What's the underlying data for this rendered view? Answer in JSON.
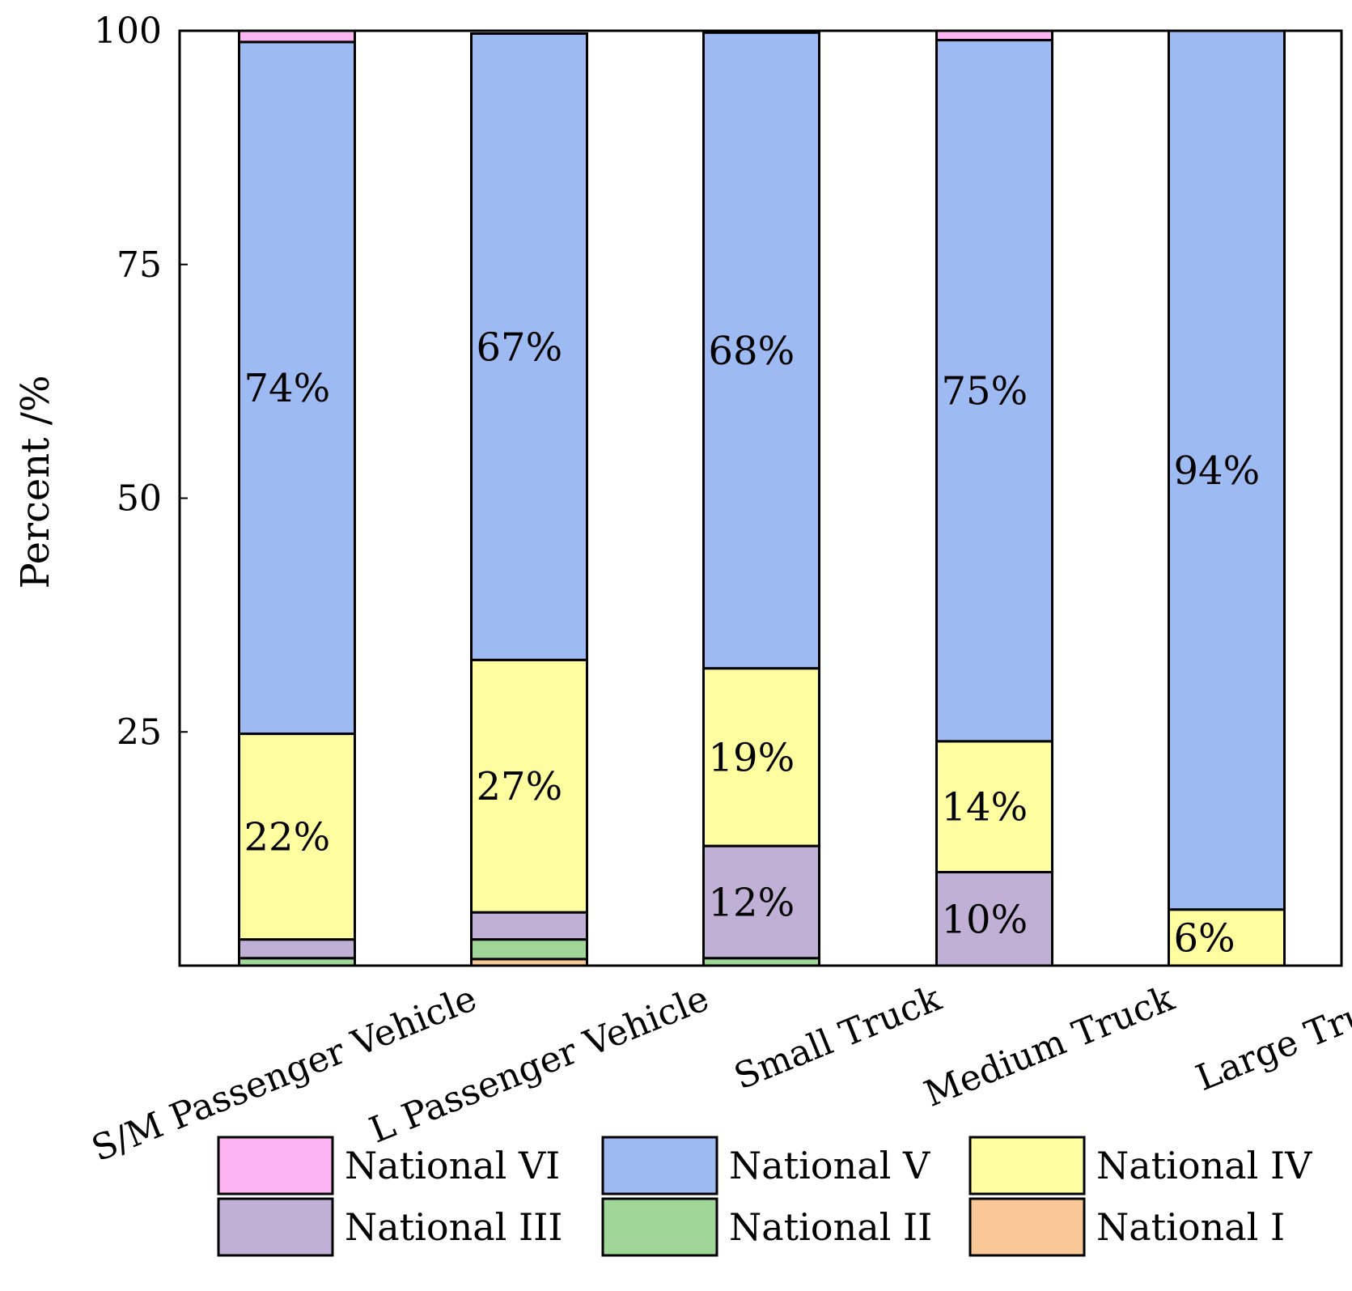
{
  "chart_data": {
    "type": "bar",
    "stacked": true,
    "title": "",
    "xlabel": "",
    "ylabel": "Percent /%",
    "ylim": [
      0,
      100
    ],
    "yticks": [
      25,
      50,
      75,
      100
    ],
    "categories": [
      "S/M Passenger Vehicle",
      "L Passenger Vehicle",
      "Small Truck",
      "Medium Truck",
      "Large Truck"
    ],
    "series": [
      {
        "name": "National I",
        "color": "#f9c896",
        "values": [
          0,
          0.7,
          0,
          0,
          0
        ]
      },
      {
        "name": "National II",
        "color": "#a0d698",
        "values": [
          0.8,
          2.1,
          0.8,
          0,
          0
        ]
      },
      {
        "name": "National III",
        "color": "#c1b0d6",
        "values": [
          2.0,
          2.9,
          12,
          10,
          0
        ]
      },
      {
        "name": "National IV",
        "color": "#fefea0",
        "values": [
          22,
          27,
          19,
          14,
          6
        ]
      },
      {
        "name": "National V",
        "color": "#9dbaf2",
        "values": [
          74,
          67,
          68,
          75,
          94
        ]
      },
      {
        "name": "National VI",
        "color": "#fdb4f2",
        "values": [
          1.2,
          0,
          0,
          1.0,
          0
        ]
      }
    ],
    "data_labels": [
      {
        "category": 0,
        "series": "National V",
        "text": "74%"
      },
      {
        "category": 0,
        "series": "National IV",
        "text": "22%"
      },
      {
        "category": 1,
        "series": "National V",
        "text": "67%"
      },
      {
        "category": 1,
        "series": "National IV",
        "text": "27%"
      },
      {
        "category": 2,
        "series": "National V",
        "text": "68%"
      },
      {
        "category": 2,
        "series": "National IV",
        "text": "19%"
      },
      {
        "category": 2,
        "series": "National III",
        "text": "12%"
      },
      {
        "category": 3,
        "series": "National V",
        "text": "75%"
      },
      {
        "category": 3,
        "series": "National IV",
        "text": "14%"
      },
      {
        "category": 3,
        "series": "National III",
        "text": "10%"
      },
      {
        "category": 4,
        "series": "National V",
        "text": "94%"
      },
      {
        "category": 4,
        "series": "National IV",
        "text": "6%"
      }
    ],
    "legend": {
      "placement": "bottom",
      "order": [
        "National VI",
        "National V",
        "National IV",
        "National III",
        "National II",
        "National I"
      ]
    }
  }
}
